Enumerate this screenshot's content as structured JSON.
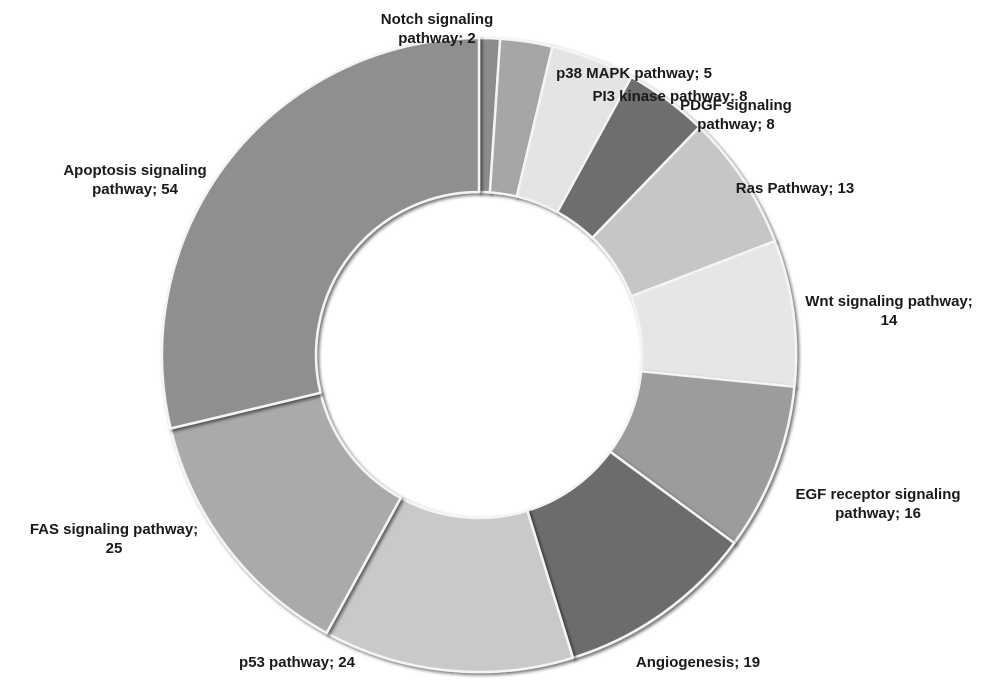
{
  "chart_data": {
    "type": "pie",
    "donut": true,
    "title": "",
    "slices": [
      {
        "name": "Notch signaling pathway",
        "value": 2,
        "label_lines": [
          "Notch signaling",
          "pathway; 2"
        ],
        "color": "#8c8c8c"
      },
      {
        "name": "p38 MAPK pathway",
        "value": 5,
        "label_lines": [
          "p38 MAPK pathway; 5"
        ],
        "color": "#a6a6a6"
      },
      {
        "name": "PI3 kinase pathway",
        "value": 8,
        "label_lines": [
          "PI3 kinase pathway; 8"
        ],
        "color": "#e4e4e4"
      },
      {
        "name": "PDGF signaling pathway",
        "value": 8,
        "label_lines": [
          "PDGF signaling",
          "pathway; 8"
        ],
        "color": "#6e6e6e"
      },
      {
        "name": "Ras Pathway",
        "value": 13,
        "label_lines": [
          "Ras Pathway; 13"
        ],
        "color": "#c6c6c6"
      },
      {
        "name": "Wnt signaling pathway",
        "value": 14,
        "label_lines": [
          "Wnt signaling pathway;",
          "14"
        ],
        "color": "#e6e6e6"
      },
      {
        "name": "EGF receptor signaling pathway",
        "value": 16,
        "label_lines": [
          "EGF receptor signaling",
          "pathway; 16"
        ],
        "color": "#9c9c9c"
      },
      {
        "name": "Angiogenesis",
        "value": 19,
        "label_lines": [
          "Angiogenesis;  19"
        ],
        "color": "#6c6c6c"
      },
      {
        "name": "p53 pathway",
        "value": 24,
        "label_lines": [
          "p53 pathway; 24"
        ],
        "color": "#c9c9c9"
      },
      {
        "name": "FAS signaling pathway",
        "value": 25,
        "label_lines": [
          "FAS signaling pathway;",
          "25"
        ],
        "color": "#aaaaaa"
      },
      {
        "name": "Apoptosis signaling pathway",
        "value": 54,
        "label_lines": [
          "Apoptosis signaling",
          "pathway; 54"
        ],
        "color": "#8f8f8f"
      }
    ]
  }
}
